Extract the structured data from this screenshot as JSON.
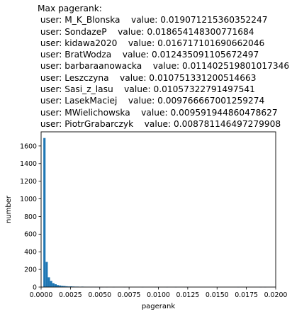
{
  "header": {
    "title": "Max pagerank:",
    "lines": [
      " user: M_K_Blonska    value: 0.019071215360352247",
      " user: SondazeP    value: 0.018654148300771684",
      " user: kidawa2020    value: 0.016717101690662046",
      " user: BratWodza    value: 0.012435091105672497",
      " user: barbaraanowacka    value: 0.011402519801017346",
      " user: Leszczyna    value: 0.010751331200514663",
      " user: Sasi_z_lasu    value: 0.01057322791497541",
      " user: LasekMaciej    value: 0.009766667001259274",
      " user: MWielichowska    value: 0.009591944860478627",
      " user: PiotrGrabarczyk    value: 0.008781146497279908"
    ]
  },
  "chart_data": {
    "type": "bar",
    "xlabel": "pagerank",
    "ylabel": "number",
    "xlim": [
      0,
      0.02
    ],
    "ylim": [
      0,
      1760
    ],
    "xticks": [
      0.0,
      0.0025,
      0.005,
      0.0075,
      0.01,
      0.0125,
      0.015,
      0.0175,
      0.02
    ],
    "xtick_labels": [
      "0.0000",
      "0.0025",
      "0.0050",
      "0.0075",
      "0.0100",
      "0.0125",
      "0.0150",
      "0.0175",
      "0.0200"
    ],
    "yticks": [
      0,
      200,
      400,
      600,
      800,
      1000,
      1200,
      1400,
      1600
    ],
    "ytick_labels": [
      "0",
      "200",
      "400",
      "600",
      "800",
      "1000",
      "1200",
      "1400",
      "1600"
    ],
    "bin_width": 0.00019,
    "bins": [
      {
        "x": 0.00019,
        "value": 1690
      },
      {
        "x": 0.00038,
        "value": 285
      },
      {
        "x": 0.00057,
        "value": 110
      },
      {
        "x": 0.00076,
        "value": 70
      },
      {
        "x": 0.00095,
        "value": 45
      },
      {
        "x": 0.00114,
        "value": 32
      },
      {
        "x": 0.00133,
        "value": 22
      },
      {
        "x": 0.00152,
        "value": 18
      },
      {
        "x": 0.00171,
        "value": 14
      },
      {
        "x": 0.0019,
        "value": 12
      },
      {
        "x": 0.00209,
        "value": 9
      },
      {
        "x": 0.00228,
        "value": 7
      },
      {
        "x": 0.00247,
        "value": 8
      },
      {
        "x": 0.00266,
        "value": 6
      },
      {
        "x": 0.00285,
        "value": 5
      },
      {
        "x": 0.00304,
        "value": 5
      },
      {
        "x": 0.00323,
        "value": 4
      },
      {
        "x": 0.00342,
        "value": 5
      },
      {
        "x": 0.00361,
        "value": 4
      },
      {
        "x": 0.0038,
        "value": 3
      },
      {
        "x": 0.00399,
        "value": 3
      },
      {
        "x": 0.00418,
        "value": 2
      },
      {
        "x": 0.00437,
        "value": 3
      },
      {
        "x": 0.00456,
        "value": 2
      },
      {
        "x": 0.00475,
        "value": 2
      },
      {
        "x": 0.00494,
        "value": 1
      },
      {
        "x": 0.00513,
        "value": 1
      },
      {
        "x": 0.00551,
        "value": 1
      },
      {
        "x": 0.00608,
        "value": 1
      },
      {
        "x": 0.00703,
        "value": 1
      },
      {
        "x": 0.00855,
        "value": 1
      },
      {
        "x": 0.00969,
        "value": 1
      },
      {
        "x": 0.01064,
        "value": 1
      },
      {
        "x": 0.0114,
        "value": 1
      },
      {
        "x": 0.01235,
        "value": 1
      },
      {
        "x": 0.01672,
        "value": 1
      },
      {
        "x": 0.01862,
        "value": 1
      },
      {
        "x": 0.019,
        "value": 1
      }
    ],
    "bar_color": "#1f77b4"
  }
}
